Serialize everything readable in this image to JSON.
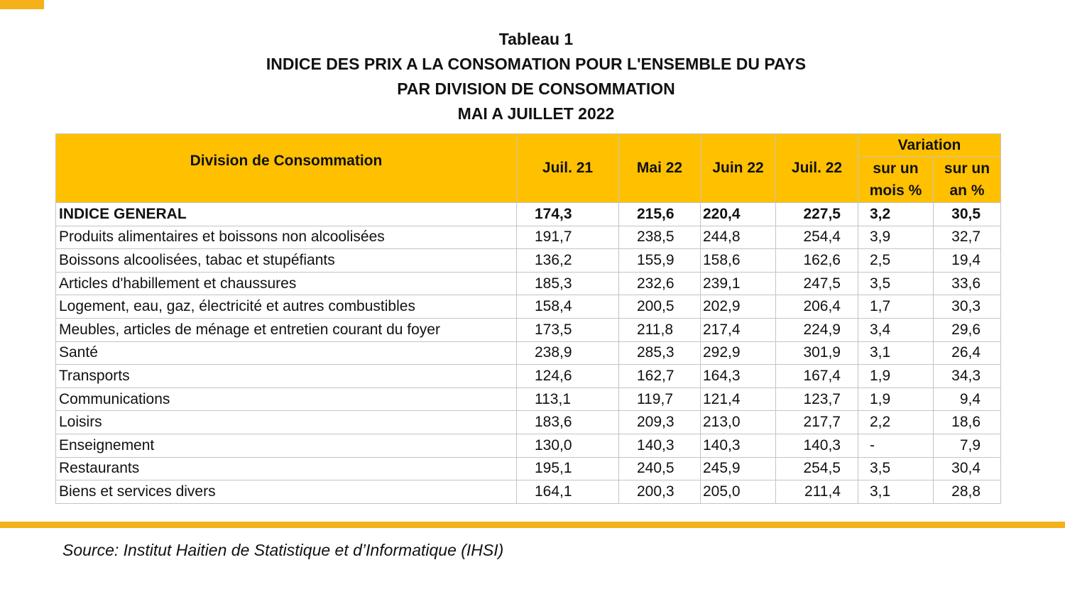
{
  "header": {
    "title": [
      "Tableau 1",
      "INDICE DES PRIX A LA CONSOMATION POUR L'ENSEMBLE DU PAYS",
      "PAR DIVISION DE CONSOMMATION",
      "MAI A JUILLET 2022"
    ]
  },
  "table": {
    "columns": {
      "division": "Division de Consommation",
      "periods": [
        "Juil. 21",
        "Mai 22",
        "Juin 22",
        "Juil. 22"
      ],
      "variation": "Variation",
      "variation_sub": [
        "sur un mois %",
        "sur un an %"
      ]
    },
    "rows": [
      [
        "INDICE GENERAL",
        "174,3",
        "215,6",
        "220,4",
        "227,5",
        "3,2",
        "30,5"
      ],
      [
        "Produits alimentaires et boissons non alcoolisées",
        "191,7",
        "238,5",
        "244,8",
        "254,4",
        "3,9",
        "32,7"
      ],
      [
        "Boissons alcoolisées, tabac et stupéfiants",
        "136,2",
        "155,9",
        "158,6",
        "162,6",
        "2,5",
        "19,4"
      ],
      [
        "Articles d'habillement et chaussures",
        "185,3",
        "232,6",
        "239,1",
        "247,5",
        "3,5",
        "33,6"
      ],
      [
        "Logement, eau, gaz, électricité et autres combustibles",
        "158,4",
        "200,5",
        "202,9",
        "206,4",
        "1,7",
        "30,3"
      ],
      [
        "Meubles, articles de ménage et entretien courant du foyer",
        "173,5",
        "211,8",
        "217,4",
        "224,9",
        "3,4",
        "29,6"
      ],
      [
        "Santé",
        "238,9",
        "285,3",
        "292,9",
        "301,9",
        "3,1",
        "26,4"
      ],
      [
        "Transports",
        "124,6",
        "162,7",
        "164,3",
        "167,4",
        "1,9",
        "34,3"
      ],
      [
        "Communications",
        "113,1",
        "119,7",
        "121,4",
        "123,7",
        "1,9",
        "9,4"
      ],
      [
        "Loisirs",
        "183,6",
        "209,3",
        "213,0",
        "217,7",
        "2,2",
        "18,6"
      ],
      [
        "Enseignement",
        "130,0",
        "140,3",
        "140,3",
        "140,3",
        "-",
        "7,9"
      ],
      [
        "Restaurants",
        "195,1",
        "240,5",
        "245,9",
        "254,5",
        "3,5",
        "30,4"
      ],
      [
        "Biens et services divers",
        "164,1",
        "200,3",
        "205,0",
        "211,4",
        "3,1",
        "28,8"
      ]
    ]
  },
  "source": "Source: Institut Haitien de Statistique et d’Informatique (IHSI)"
}
